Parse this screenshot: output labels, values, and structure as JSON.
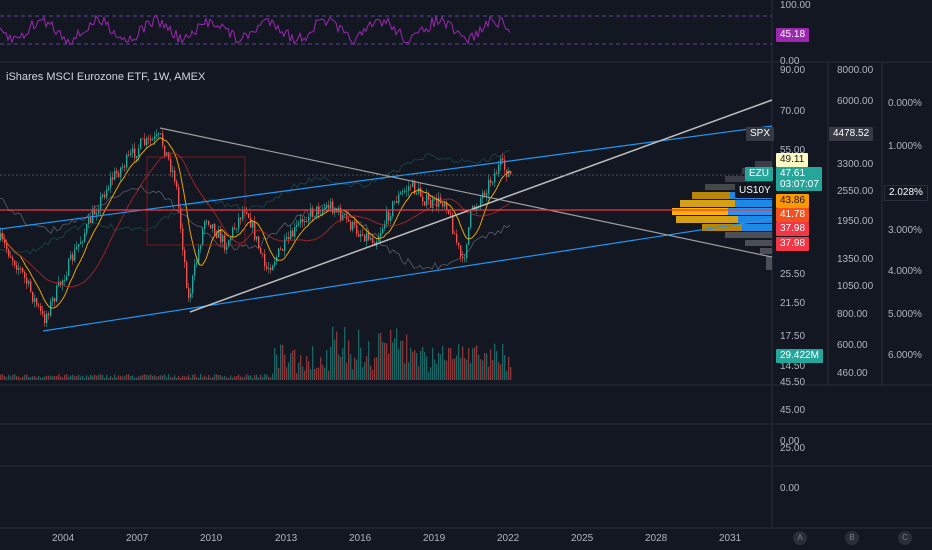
{
  "chart_title": "iShares MSCI Eurozone ETF, 1W, AMEX",
  "rsi_panel": {
    "axis": [
      "100.00",
      "0.00"
    ],
    "value_tag": "45.18",
    "color": "#9c27b0"
  },
  "price_axis": [
    "90.00",
    "70.00",
    "55.00",
    "25.50",
    "21.50",
    "17.50",
    "14.50",
    "45.50",
    "45.00",
    "0.00",
    "25.00",
    "0.00"
  ],
  "spx_axis": [
    "8000.00",
    "6000.00",
    "4478.52",
    "3300.00",
    "2550.00",
    "1950.00",
    "1350.00",
    "1050.00",
    "800.00",
    "600.00",
    "460.00"
  ],
  "yield_axis": [
    "0.000%",
    "1.000%",
    "2.028%",
    "3.000%",
    "4.000%",
    "5.000%",
    "6.000%"
  ],
  "tags": {
    "spx": "SPX",
    "spx_value": "4478.52",
    "level_4911": "49.11",
    "ezu": "EZU",
    "ezu_price": "47.61",
    "countdown": "03:07:07",
    "us10y": "US10Y",
    "us10y_value": "2.028%",
    "level_4386": "43.86",
    "level_4178": "41.78",
    "level_3798a": "37.98",
    "level_3798b": "37.98",
    "volume": "29.422M"
  },
  "x_axis": [
    "2004",
    "2007",
    "2010",
    "2013",
    "2016",
    "2019",
    "2022",
    "2025",
    "2028",
    "2031"
  ],
  "footer_buttons": [
    "A",
    "B",
    "C"
  ],
  "colors": {
    "background": "#131722",
    "trendline_blue": "#2196f3",
    "support_red": "#f23645",
    "ezu_teal": "#26a69a",
    "ma_orange": "#ff9800",
    "rsi_purple": "#9c27b0"
  }
}
